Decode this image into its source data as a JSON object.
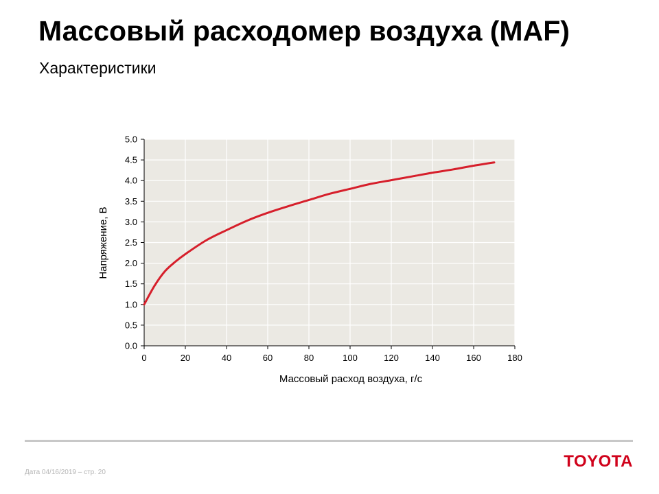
{
  "header": {
    "title": "Массовый расходомер воздуха (MAF)",
    "subtitle": "Характеристики"
  },
  "chart_data": {
    "type": "line",
    "xlabel": "Массовый расход воздуха, г/с",
    "ylabel": "Напряжение, В",
    "xlim": [
      0,
      180
    ],
    "ylim": [
      0,
      5
    ],
    "x_ticks": [
      "0",
      "20",
      "40",
      "60",
      "80",
      "100",
      "120",
      "140",
      "160",
      "180"
    ],
    "y_ticks": [
      "0.0",
      "0.5",
      "1.0",
      "1.5",
      "2.0",
      "2.5",
      "3.0",
      "3.5",
      "4.0",
      "4.5",
      "5.0"
    ],
    "grid": true,
    "background": "#ebe9e3",
    "grid_color": "#ffffff",
    "series": [
      {
        "color": "#d61f2b",
        "x": [
          0,
          5,
          10,
          15,
          20,
          30,
          40,
          50,
          60,
          70,
          80,
          90,
          100,
          110,
          120,
          130,
          140,
          150,
          160,
          170
        ],
        "y": [
          1.0,
          1.45,
          1.8,
          2.03,
          2.22,
          2.55,
          2.8,
          3.03,
          3.22,
          3.38,
          3.53,
          3.68,
          3.8,
          3.92,
          4.01,
          4.1,
          4.19,
          4.27,
          4.36,
          4.44
        ]
      }
    ]
  },
  "footer": {
    "date_text": "Дата 04/16/2019 – стр.  20",
    "logo_text": "TOYOTA",
    "logo_color": "#d0021b"
  }
}
